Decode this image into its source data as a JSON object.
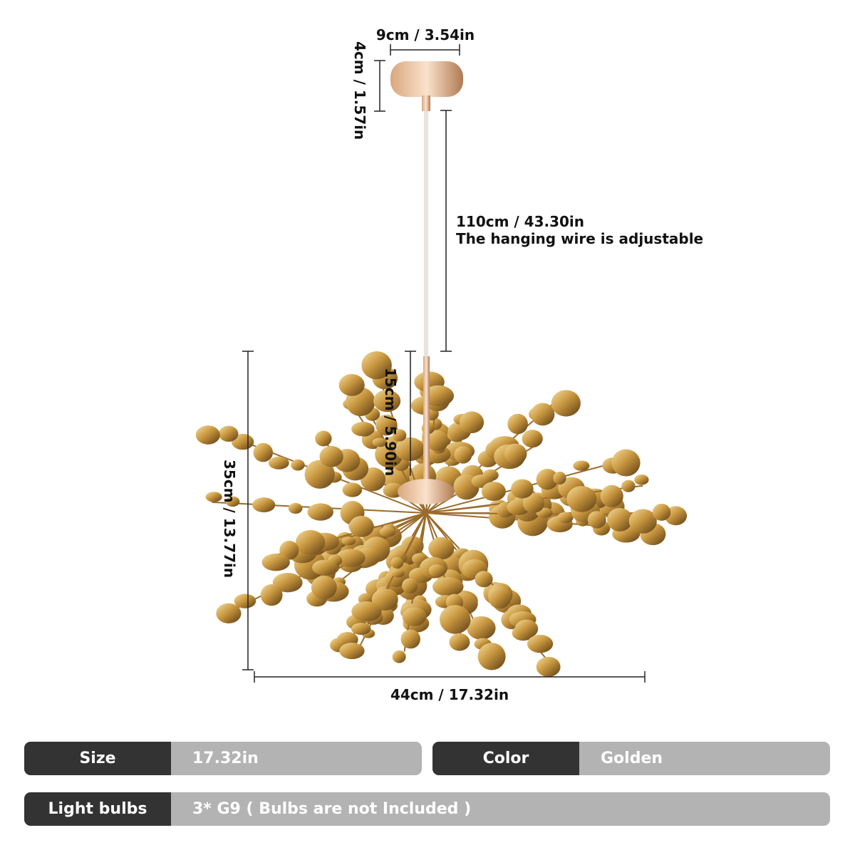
{
  "dimensions": {
    "canopy_width": "9cm / 3.54in",
    "canopy_height": "4cm / 1.57in",
    "wire_length": "110cm / 43.30in",
    "wire_note": "The hanging wire is adjustable",
    "rod_length": "15cm / 5.90in",
    "height": "35cm / 13.77in",
    "width": "44cm / 17.32in"
  },
  "specs": [
    {
      "label": "Size",
      "value": "17.32in"
    },
    {
      "label": "Color",
      "value": "Golden"
    },
    {
      "label": "Light bulbs",
      "value": "3* G9 ( Bulbs are not Included )"
    }
  ]
}
